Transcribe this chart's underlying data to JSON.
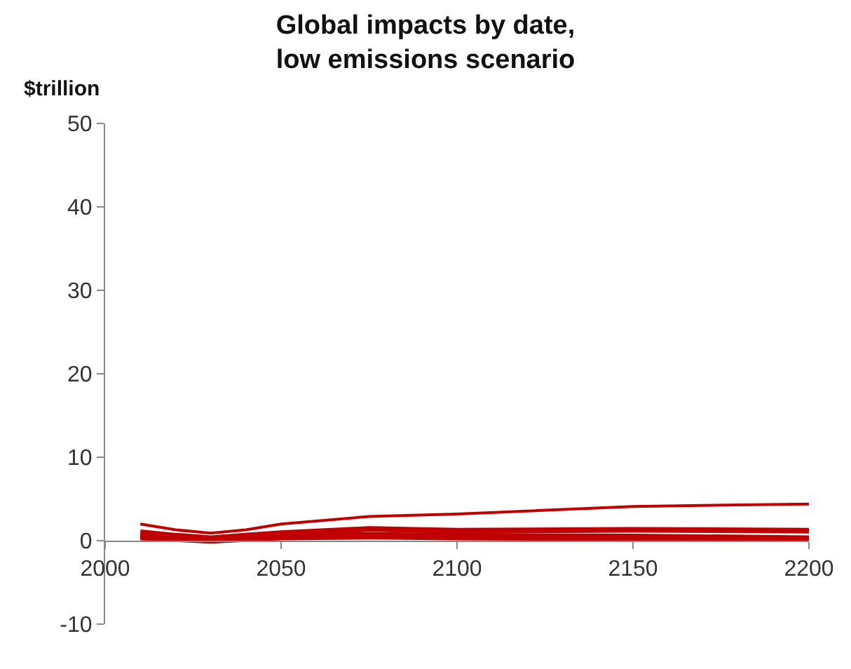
{
  "chart_data": {
    "type": "line",
    "title": "Global impacts by date,\nlow emissions scenario",
    "ylabel": "$trillion",
    "x": [
      2010,
      2020,
      2030,
      2040,
      2050,
      2075,
      2100,
      2150,
      2200
    ],
    "series": [
      {
        "color": "#c00000",
        "values": [
          2.0,
          1.3,
          0.9,
          1.3,
          2.0,
          2.9,
          3.2,
          4.1,
          4.4
        ]
      },
      {
        "color": "#c00000",
        "values": [
          1.0,
          0.6,
          0.3,
          0.6,
          0.9,
          1.4,
          1.2,
          1.3,
          1.2
        ]
      },
      {
        "color": "#c00000",
        "values": [
          0.6,
          0.3,
          0.0,
          0.3,
          0.5,
          0.7,
          0.6,
          0.5,
          0.3
        ]
      },
      {
        "color": "#c00000",
        "values": [
          0.3,
          0.1,
          -0.1,
          0.1,
          0.3,
          0.4,
          0.3,
          0.2,
          0.1
        ]
      }
    ],
    "xlim": [
      2000,
      2200
    ],
    "xticks": [
      2000,
      2050,
      2100,
      2150,
      2200
    ],
    "ylim": [
      -10,
      50
    ],
    "yticks": [
      -10,
      0,
      10,
      20,
      30,
      40,
      50
    ],
    "marker": "none",
    "line_style": "solid"
  }
}
